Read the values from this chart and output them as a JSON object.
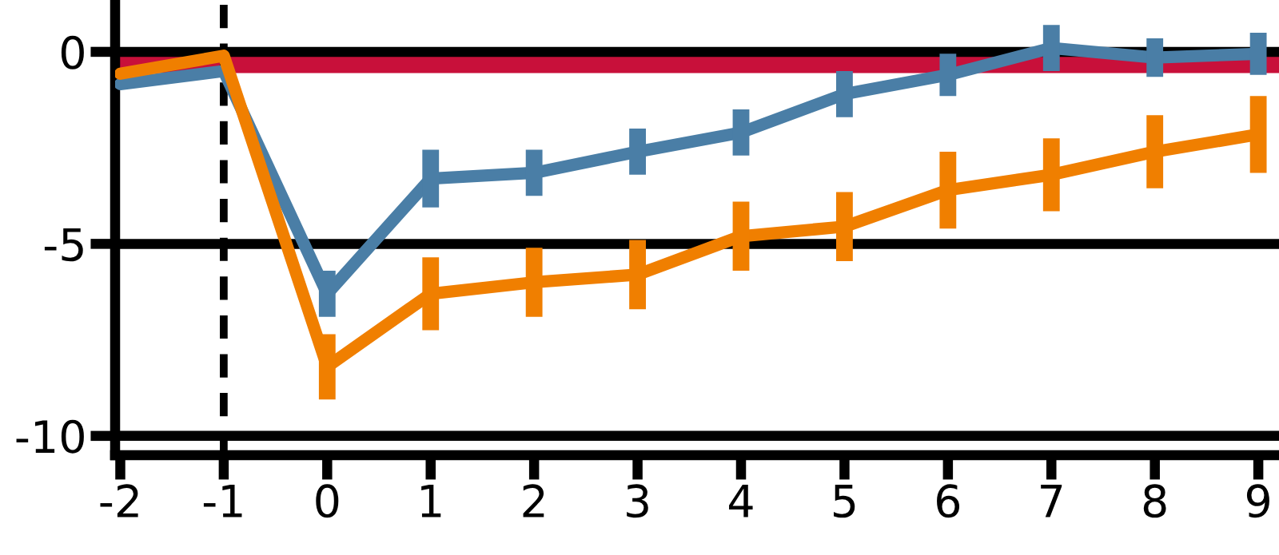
{
  "chart_data": {
    "type": "line",
    "x": [
      -2,
      -1,
      0,
      1,
      2,
      3,
      4,
      5,
      6,
      7,
      8,
      9
    ],
    "series": [
      {
        "color": "#4a7ea6",
        "values": [
          -0.84,
          -0.5,
          -6.3,
          -3.3,
          -3.15,
          -2.6,
          -2.1,
          -1.1,
          -0.6,
          0.1,
          -0.15,
          -0.05
        ],
        "errors": [
          null,
          null,
          0.6,
          0.75,
          0.6,
          0.6,
          0.6,
          0.6,
          0.55,
          0.6,
          0.5,
          0.55
        ]
      },
      {
        "color": "#f07f00",
        "values": [
          -0.57,
          -0.1,
          -8.2,
          -6.3,
          -6.0,
          -5.8,
          -4.8,
          -4.55,
          -3.6,
          -3.2,
          -2.6,
          -2.15
        ],
        "errors": [
          null,
          null,
          0.85,
          0.95,
          0.9,
          0.9,
          0.9,
          0.9,
          1.0,
          0.95,
          0.95,
          1.0
        ]
      }
    ],
    "xlim": [
      -2.05,
      9.2
    ],
    "ylim": [
      -10.5,
      1.35
    ],
    "xticks": [
      -2,
      -1,
      0,
      1,
      2,
      3,
      4,
      5,
      6,
      7,
      8,
      9
    ],
    "yticks": [
      -10,
      -5,
      0
    ],
    "grid": "y",
    "line_style": "solid",
    "bands": [
      {
        "axis": "y",
        "from": -0.55,
        "to": 0,
        "color": "#c8103a"
      }
    ],
    "ref_lines": [
      {
        "axis": "x",
        "value": -1,
        "color": "#000000",
        "line_style": "dashed"
      }
    ]
  }
}
